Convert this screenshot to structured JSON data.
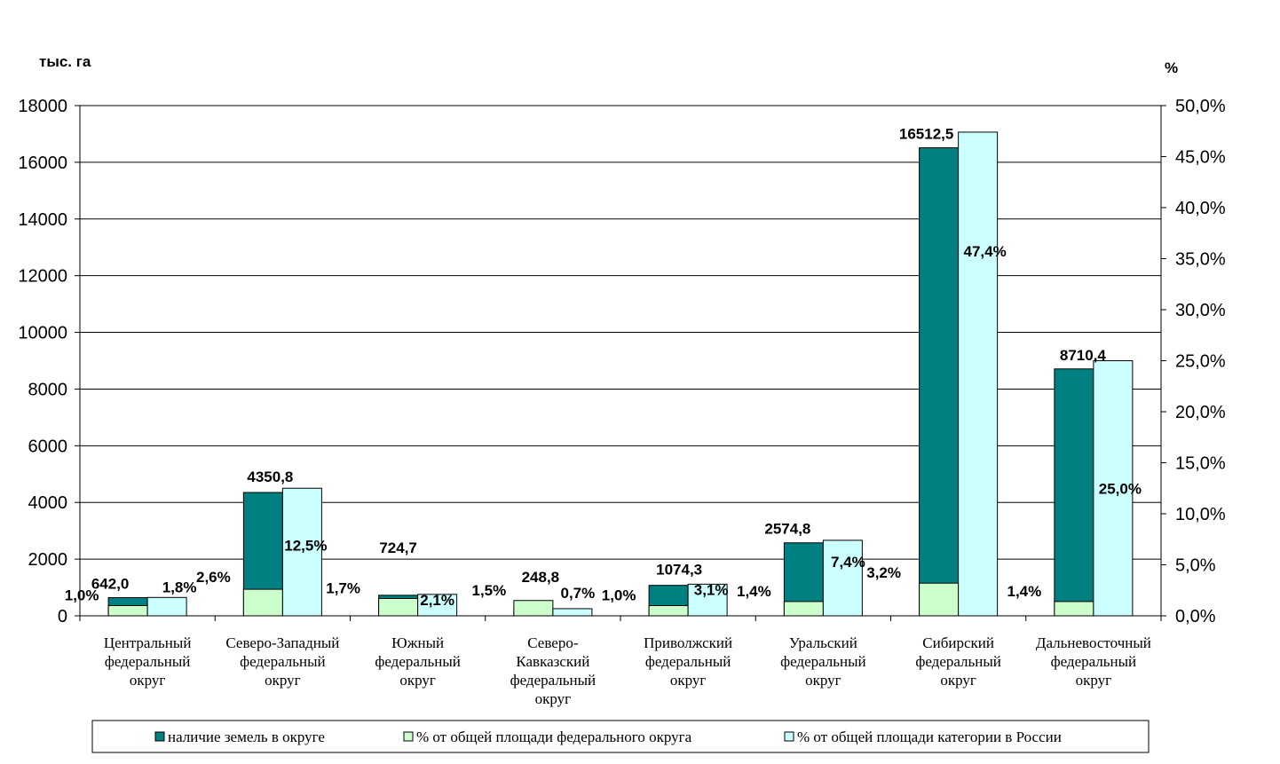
{
  "chart_data": {
    "type": "bar",
    "categories": [
      [
        "Центральный",
        "федеральный",
        "округ"
      ],
      [
        "Северо-Западный",
        "федеральный",
        "округ"
      ],
      [
        "Южный",
        "федеральный",
        "округ"
      ],
      [
        "Северо-",
        "Кавказский",
        "федеральный",
        "округ"
      ],
      [
        "Приволжский",
        "федеральный",
        "округ"
      ],
      [
        "Уральский",
        "федеральный",
        "округ"
      ],
      [
        "Сибирский",
        "федеральный",
        "округ"
      ],
      [
        "Дальневосточный",
        "федеральный",
        "округ"
      ]
    ],
    "y_left": {
      "unit_label": "тыс. га",
      "ylim": [
        0,
        18000
      ],
      "ticks": [
        0,
        2000,
        4000,
        6000,
        8000,
        10000,
        12000,
        14000,
        16000,
        18000
      ],
      "tick_labels": [
        "0",
        "2000",
        "4000",
        "6000",
        "8000",
        "10000",
        "12000",
        "14000",
        "16000",
        "18000"
      ]
    },
    "y_right": {
      "unit_label": "%",
      "ylim": [
        0,
        50
      ],
      "ticks": [
        0,
        5,
        10,
        15,
        20,
        25,
        30,
        35,
        40,
        45,
        50
      ],
      "tick_labels": [
        "0,0%",
        "5,0%",
        "10,0%",
        "15,0%",
        "20,0%",
        "25,0%",
        "30,0%",
        "35,0%",
        "40,0%",
        "45,0%",
        "50,0%"
      ]
    },
    "series": [
      {
        "name": "наличие земель в округе",
        "axis": "left",
        "color": "#008080",
        "values": [
          642.0,
          4350.8,
          724.7,
          248.8,
          1074.3,
          2574.8,
          16512.5,
          8710.4
        ],
        "labels": [
          "642,0",
          "4350,8",
          "724,7",
          "248,8",
          "1074,3",
          "2574,8",
          "16512,5",
          "8710,4"
        ]
      },
      {
        "name": "% от общей площади федерального округа",
        "axis": "right",
        "color": "#CCFFCC",
        "values": [
          1.0,
          2.6,
          1.7,
          1.5,
          1.0,
          1.4,
          3.2,
          1.4
        ],
        "labels": [
          "1,0%",
          "2,6%",
          "1,7%",
          "1,5%",
          "1,0%",
          "1,4%",
          "3,2%",
          "1,4%"
        ]
      },
      {
        "name": "% от общей площади категории в России",
        "axis": "right",
        "color": "#CCFFFF",
        "values": [
          1.8,
          12.5,
          2.1,
          0.7,
          3.1,
          7.4,
          47.4,
          25.0
        ],
        "labels": [
          "1,8%",
          "12,5%",
          "2,1%",
          "0,7%",
          "3,1%",
          "7,4%",
          "47,4%",
          "25,0%"
        ]
      }
    ],
    "grid": true,
    "legend": "bottom"
  }
}
